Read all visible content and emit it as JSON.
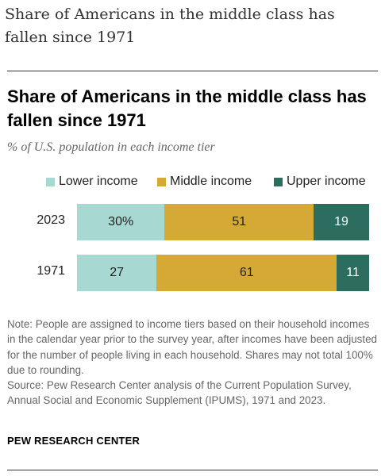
{
  "headline": "Share of Americans in the middle class has fallen since 1971",
  "chart_data": {
    "type": "bar",
    "orientation": "horizontal",
    "stacked": true,
    "title": "Share of Americans in the middle class has fallen since 1971",
    "subtitle": "% of U.S. population in each income tier",
    "categories": [
      "2023",
      "1971"
    ],
    "series": [
      {
        "name": "Lower income",
        "color": "#a7d8d1",
        "text_color": "#222222",
        "values": [
          30,
          27
        ],
        "labels": [
          "30%",
          "27"
        ]
      },
      {
        "name": "Middle income",
        "color": "#d4a935",
        "text_color": "#222222",
        "values": [
          51,
          61
        ],
        "labels": [
          "51",
          "61"
        ]
      },
      {
        "name": "Upper income",
        "color": "#2c6d60",
        "text_color": "#ffffff",
        "values": [
          19,
          11
        ],
        "labels": [
          "19",
          "11"
        ]
      }
    ],
    "xlim": [
      0,
      100
    ],
    "legend_position": "top",
    "grid": false
  },
  "footnote": {
    "note": "Note: People are assigned to income tiers based on their household incomes in the calendar year prior to the survey year, after incomes have been adjusted for the number of people living in each household. Shares may not total 100% due to rounding.",
    "source": "Source: Pew Research Center analysis of the Current Population Survey, Annual Social and Economic Supplement (IPUMS), 1971 and 2023."
  },
  "brand": "PEW RESEARCH CENTER"
}
